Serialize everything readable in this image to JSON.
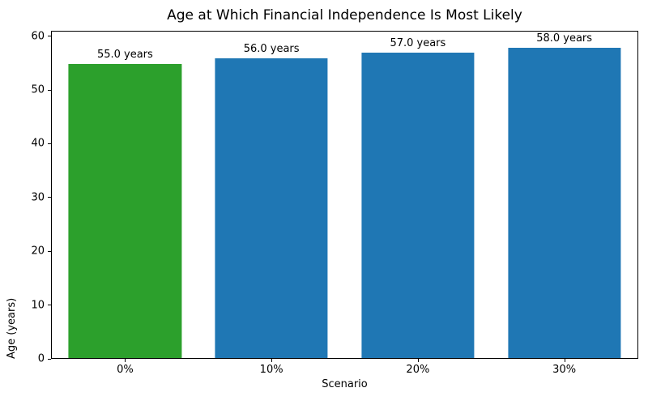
{
  "chart_data": {
    "type": "bar",
    "title": "Age at Which Financial Independence Is Most Likely",
    "xlabel": "Scenario",
    "ylabel": "Age (years)",
    "categories": [
      "0%",
      "10%",
      "20%",
      "30%"
    ],
    "values": [
      55.0,
      56.0,
      57.0,
      58.0
    ],
    "bar_labels": [
      "55.0 years",
      "56.0 years",
      "57.0 years",
      "58.0 years"
    ],
    "bar_colors": [
      "#2ca02c",
      "#1f77b4",
      "#1f77b4",
      "#1f77b4"
    ],
    "yticks": [
      0,
      10,
      20,
      30,
      40,
      50,
      60
    ],
    "ylim": [
      0,
      61
    ],
    "grid": false,
    "legend_position": "none",
    "axis_color": "#000000",
    "background_color": "#ffffff"
  }
}
